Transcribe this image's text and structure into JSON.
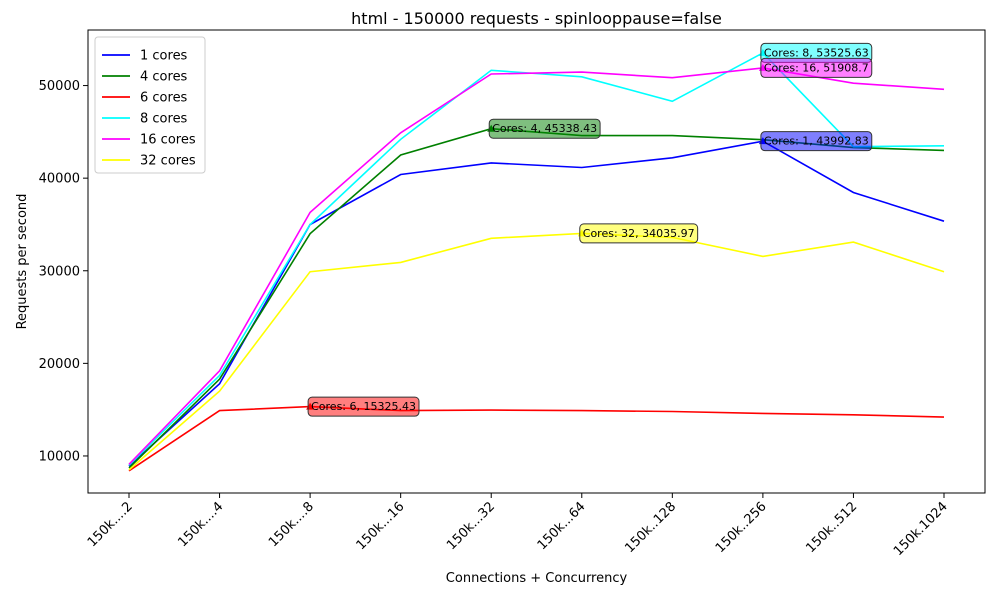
{
  "chart_data": {
    "type": "line",
    "title": "html - 150000 requests - spinlooppause=false",
    "xlabel": "Connections + Concurrency",
    "ylabel": "Requests per second",
    "categories": [
      "150k....2",
      "150k....4",
      "150k....8",
      "150k...16",
      "150k...32",
      "150k...64",
      "150k..128",
      "150k..256",
      "150k..512",
      "150k.1024"
    ],
    "ylim": [
      6000,
      56000
    ],
    "yticks": [
      10000,
      20000,
      30000,
      40000,
      50000
    ],
    "legend_position": "upper-left",
    "series": [
      {
        "name": "1 cores",
        "color": "#0000ff",
        "values": [
          8900,
          17800,
          35000,
          40400,
          41650,
          41150,
          42200,
          43992.83,
          38450,
          35350
        ],
        "annotation": {
          "index": 7,
          "label": "Cores: 1, 43992.83"
        }
      },
      {
        "name": "4 cores",
        "color": "#008000",
        "values": [
          8700,
          18300,
          34000,
          42500,
          45338.43,
          44600,
          44600,
          44150,
          43300,
          43000
        ],
        "annotation": {
          "index": 4,
          "label": "Cores: 4, 45338.43"
        }
      },
      {
        "name": "6 cores",
        "color": "#ff0000",
        "values": [
          8400,
          14900,
          15325.43,
          14900,
          14950,
          14900,
          14800,
          14600,
          14450,
          14200
        ],
        "annotation": {
          "index": 2,
          "label": "Cores: 6, 15325.43"
        }
      },
      {
        "name": "8 cores",
        "color": "#00ffff",
        "values": [
          9000,
          18700,
          35000,
          44200,
          51650,
          50950,
          48300,
          53525.63,
          43400,
          43500
        ],
        "annotation": {
          "index": 7,
          "label": "Cores: 8, 53525.63"
        }
      },
      {
        "name": "16 cores",
        "color": "#ff00ff",
        "values": [
          9100,
          19200,
          36300,
          44900,
          51250,
          51450,
          50850,
          51908.7,
          50250,
          49600
        ],
        "annotation": {
          "index": 7,
          "label": "Cores: 16, 51908.7"
        }
      },
      {
        "name": "32 cores",
        "color": "#ffff00",
        "values": [
          8500,
          17000,
          29900,
          30900,
          33500,
          34035.97,
          33600,
          31550,
          33100,
          29900
        ],
        "annotation": {
          "index": 5,
          "label": "Cores: 32, 34035.97"
        }
      }
    ]
  }
}
